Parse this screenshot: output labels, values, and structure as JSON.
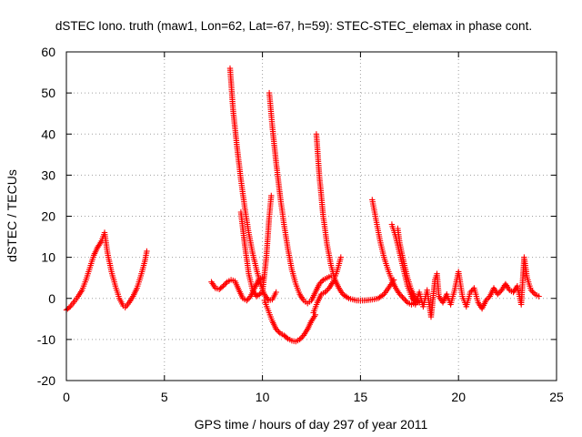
{
  "chart_data": {
    "type": "scatter",
    "title": "dSTEC Iono. truth (maw1, Lon=62, Lat=-67, h=59): STEC-STEC_elemax in phase cont.",
    "xlabel": "GPS time / hours of day 297 of year 2011",
    "ylabel": "dSTEC  / TECUs",
    "xlim": [
      0,
      25
    ],
    "ylim": [
      -20,
      60
    ],
    "x_ticks": [
      0,
      5,
      10,
      15,
      20,
      25
    ],
    "y_ticks": [
      -20,
      -10,
      0,
      10,
      20,
      30,
      40,
      50,
      60
    ],
    "grid": true,
    "marker": "plus",
    "color": "#ff0000",
    "series": [
      {
        "values": [
          [
            0.0,
            -2.8
          ],
          [
            0.2,
            -2.0
          ],
          [
            0.4,
            -0.8
          ],
          [
            0.6,
            0.5
          ],
          [
            0.8,
            2.0
          ],
          [
            1.0,
            4.5
          ],
          [
            1.2,
            7.5
          ],
          [
            1.4,
            10.5
          ],
          [
            1.6,
            12.5
          ],
          [
            1.8,
            14.0
          ],
          [
            1.95,
            16.0
          ],
          [
            2.1,
            11.0
          ],
          [
            2.3,
            6.5
          ],
          [
            2.5,
            3.0
          ],
          [
            2.7,
            0.0
          ],
          [
            2.9,
            -1.8
          ],
          [
            3.0,
            -2.2
          ],
          [
            3.2,
            -1.0
          ],
          [
            3.4,
            0.5
          ],
          [
            3.6,
            2.5
          ],
          [
            3.8,
            5.5
          ],
          [
            4.0,
            9.0
          ],
          [
            4.1,
            11.5
          ]
        ]
      },
      {
        "values": [
          [
            7.4,
            4.0
          ],
          [
            7.6,
            2.5
          ],
          [
            7.8,
            2.2
          ],
          [
            8.0,
            3.0
          ],
          [
            8.2,
            4.0
          ],
          [
            8.4,
            4.5
          ],
          [
            8.6,
            4.2
          ],
          [
            8.8,
            2.0
          ],
          [
            9.0,
            0.0
          ],
          [
            9.2,
            -0.5
          ],
          [
            9.4,
            0.5
          ],
          [
            9.6,
            2.5
          ],
          [
            9.8,
            4.5
          ],
          [
            10.0,
            5.0
          ]
        ]
      },
      {
        "values": [
          [
            8.35,
            56.0
          ],
          [
            8.5,
            46.0
          ],
          [
            8.7,
            37.0
          ],
          [
            8.9,
            29.0
          ],
          [
            9.1,
            22.0
          ],
          [
            9.3,
            16.0
          ],
          [
            9.5,
            11.0
          ],
          [
            9.7,
            7.0
          ],
          [
            9.9,
            3.5
          ],
          [
            10.1,
            1.0
          ],
          [
            10.3,
            -0.5
          ],
          [
            10.5,
            -0.3
          ],
          [
            10.7,
            1.5
          ]
        ]
      },
      {
        "values": [
          [
            10.35,
            50.0
          ],
          [
            10.5,
            42.0
          ],
          [
            10.7,
            33.0
          ],
          [
            10.9,
            25.0
          ],
          [
            11.1,
            18.0
          ],
          [
            11.3,
            12.0
          ],
          [
            11.5,
            7.0
          ],
          [
            11.7,
            3.5
          ],
          [
            11.9,
            1.0
          ],
          [
            12.1,
            -0.5
          ],
          [
            12.3,
            -1.2
          ],
          [
            12.5,
            -0.5
          ],
          [
            12.7,
            1.5
          ],
          [
            12.9,
            3.5
          ],
          [
            13.1,
            4.5
          ],
          [
            13.3,
            5.0
          ],
          [
            13.5,
            5.5
          ]
        ]
      },
      {
        "values": [
          [
            10.1,
            -0.5
          ],
          [
            10.3,
            -3.0
          ],
          [
            10.5,
            -5.5
          ],
          [
            10.7,
            -7.5
          ],
          [
            10.9,
            -8.5
          ],
          [
            11.1,
            -9.0
          ],
          [
            11.3,
            -9.8
          ],
          [
            11.5,
            -10.3
          ],
          [
            11.7,
            -10.5
          ],
          [
            11.9,
            -10.0
          ],
          [
            12.1,
            -9.0
          ],
          [
            12.3,
            -7.5
          ],
          [
            12.5,
            -5.5
          ],
          [
            12.7,
            -4.0
          ]
        ]
      },
      {
        "values": [
          [
            8.9,
            21.0
          ],
          [
            9.1,
            13.0
          ],
          [
            9.3,
            6.0
          ],
          [
            9.5,
            2.0
          ],
          [
            9.7,
            0.5
          ],
          [
            10.0,
            1.5
          ],
          [
            10.2,
            10.0
          ],
          [
            10.35,
            20.0
          ],
          [
            10.45,
            25.0
          ]
        ]
      },
      {
        "values": [
          [
            12.75,
            40.0
          ],
          [
            12.9,
            30.0
          ],
          [
            13.1,
            20.0
          ],
          [
            13.3,
            13.0
          ],
          [
            13.5,
            8.0
          ],
          [
            13.7,
            4.5
          ],
          [
            13.9,
            2.5
          ],
          [
            14.1,
            1.0
          ],
          [
            14.4,
            0.0
          ],
          [
            14.8,
            -0.5
          ],
          [
            15.2,
            -0.5
          ],
          [
            15.6,
            -0.3
          ],
          [
            15.9,
            0.0
          ],
          [
            16.2,
            1.0
          ],
          [
            16.5,
            3.0
          ],
          [
            16.7,
            4.5
          ]
        ]
      },
      {
        "values": [
          [
            12.6,
            -3.5
          ],
          [
            12.8,
            -1.0
          ],
          [
            13.0,
            1.0
          ],
          [
            13.2,
            1.5
          ],
          [
            13.4,
            2.5
          ],
          [
            13.6,
            4.0
          ],
          [
            13.8,
            6.5
          ],
          [
            14.0,
            10.0
          ]
        ]
      },
      {
        "values": [
          [
            15.6,
            24.0
          ],
          [
            15.8,
            19.0
          ],
          [
            16.0,
            14.0
          ],
          [
            16.2,
            10.0
          ],
          [
            16.4,
            7.0
          ],
          [
            16.6,
            4.5
          ],
          [
            16.8,
            2.5
          ],
          [
            17.0,
            1.0
          ],
          [
            17.2,
            0.0
          ],
          [
            17.4,
            -1.0
          ],
          [
            17.6,
            -1.5
          ],
          [
            17.8,
            -1.0
          ]
        ]
      },
      {
        "values": [
          [
            16.6,
            18.0
          ],
          [
            16.8,
            15.0
          ],
          [
            17.0,
            11.0
          ],
          [
            17.2,
            7.0
          ],
          [
            17.4,
            3.0
          ],
          [
            17.6,
            0.5
          ],
          [
            17.8,
            -1.0
          ],
          [
            18.0,
            -1.0
          ]
        ]
      },
      {
        "values": [
          [
            16.9,
            17.0
          ],
          [
            17.0,
            13.5
          ],
          [
            17.2,
            9.0
          ],
          [
            17.4,
            5.0
          ],
          [
            17.6,
            2.0
          ],
          [
            17.8,
            0.0
          ],
          [
            18.0,
            -1.0
          ]
        ]
      },
      {
        "values": [
          [
            17.6,
            1.0
          ],
          [
            17.8,
            -1.5
          ],
          [
            18.0,
            1.5
          ],
          [
            18.2,
            -2.0
          ],
          [
            18.4,
            2.0
          ],
          [
            18.6,
            -4.5
          ],
          [
            18.8,
            4.5
          ],
          [
            18.9,
            6.0
          ],
          [
            19.0,
            0.5
          ],
          [
            19.2,
            -1.0
          ],
          [
            19.4,
            1.0
          ],
          [
            19.6,
            -1.5
          ],
          [
            19.8,
            2.0
          ],
          [
            20.0,
            6.5
          ],
          [
            20.2,
            0.5
          ],
          [
            20.4,
            -2.0
          ],
          [
            20.6,
            1.5
          ],
          [
            20.8,
            2.5
          ],
          [
            21.0,
            -1.0
          ],
          [
            21.2,
            -2.5
          ],
          [
            21.4,
            -0.5
          ],
          [
            21.6,
            0.5
          ],
          [
            21.8,
            2.5
          ],
          [
            22.0,
            1.0
          ],
          [
            22.2,
            2.0
          ],
          [
            22.4,
            3.5
          ],
          [
            22.6,
            2.0
          ],
          [
            22.8,
            1.5
          ],
          [
            23.0,
            3.0
          ],
          [
            23.2,
            -1.5
          ],
          [
            23.35,
            10.0
          ],
          [
            23.5,
            5.0
          ],
          [
            23.7,
            2.0
          ],
          [
            23.9,
            1.0
          ],
          [
            24.1,
            0.5
          ]
        ]
      }
    ]
  }
}
